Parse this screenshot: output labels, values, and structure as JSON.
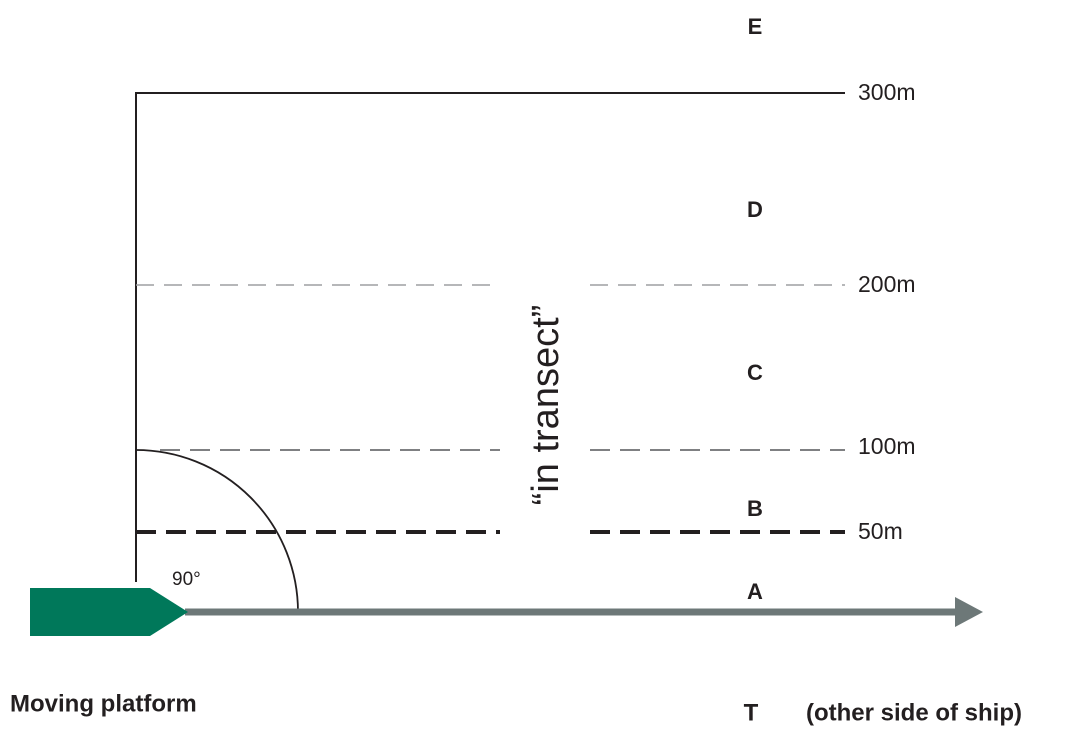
{
  "zones": [
    "E",
    "D",
    "C",
    "B",
    "A"
  ],
  "distance_lines": [
    "300m",
    "200m",
    "100m",
    "50m"
  ],
  "transect_label": "“in transect”",
  "angle_label": "90°",
  "platform_label": "Moving platform",
  "side_marker": "T",
  "side_note": "(other side of ship)"
}
